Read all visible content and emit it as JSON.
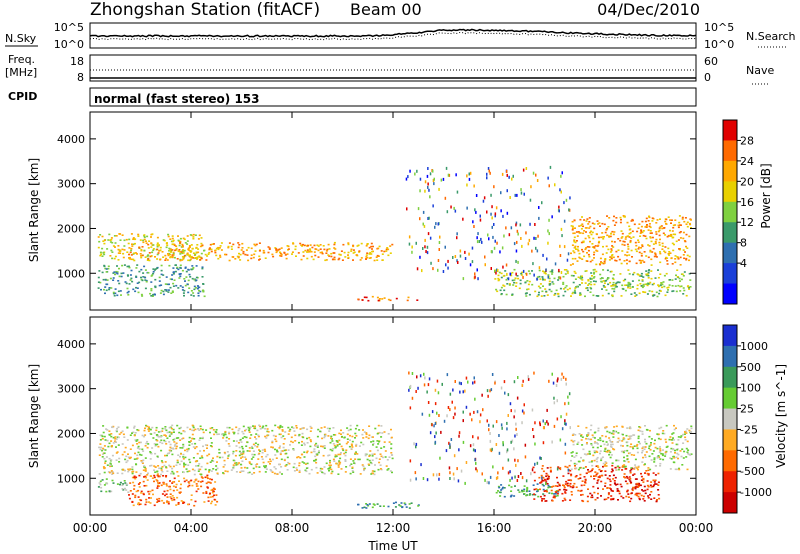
{
  "header": {
    "station": "Zhongshan Station (fitACF)",
    "beam": "Beam 00",
    "date": "04/Dec/2010"
  },
  "panels": {
    "nsky": {
      "label": "N.Sky",
      "tick_top": "10^5",
      "tick_bottom": "10^0",
      "right_label": "N.Search",
      "right_tick_top": "10^5",
      "right_tick_bottom": "10^0"
    },
    "freq": {
      "label_line1": "Freq.",
      "label_line2": "[MHz]",
      "tick_top": "18",
      "tick_bottom": "8",
      "right_tick_top": "60",
      "right_tick_bottom": "0",
      "right_label": "Nave"
    },
    "cpid": {
      "label": "CPID",
      "value": "normal (fast stereo) 153"
    }
  },
  "chart_data": [
    {
      "type": "heatmap",
      "name": "power",
      "ylabel": "Slant Range [km]",
      "xlabel": "",
      "yticks": [
        1000,
        2000,
        3000,
        4000
      ],
      "ylim": [
        180,
        4600
      ],
      "xlim": [
        0,
        24
      ],
      "colorbar": {
        "label": "Power [dB]",
        "ticks": [
          "28",
          "24",
          "20",
          "16",
          "12",
          "8",
          "4"
        ],
        "colors": [
          "#e00000",
          "#ff6a00",
          "#ffa800",
          "#e8d000",
          "#7fd040",
          "#3a9a6a",
          "#2e6fb0",
          "#1a3fd8",
          "#0000ff"
        ]
      },
      "echo_bands": [
        {
          "t0": 0.3,
          "t1": 4.5,
          "r0": 1300,
          "r1": 1900,
          "level": 3
        },
        {
          "t0": 0.3,
          "t1": 4.5,
          "r0": 500,
          "r1": 1200,
          "level": 5
        },
        {
          "t0": 1.5,
          "t1": 12.0,
          "r0": 1300,
          "r1": 1700,
          "level": 2
        },
        {
          "t0": 10.5,
          "t1": 13.0,
          "r0": 400,
          "r1": 500,
          "level": 1
        },
        {
          "t0": 16.0,
          "t1": 23.8,
          "r0": 500,
          "r1": 1100,
          "level": 4
        },
        {
          "t0": 19.0,
          "t1": 23.8,
          "r0": 1200,
          "r1": 2300,
          "level": 2
        }
      ]
    },
    {
      "type": "heatmap",
      "name": "velocity",
      "ylabel": "Slant Range [km]",
      "xlabel": "Time UT",
      "xticks": [
        "00:00",
        "04:00",
        "08:00",
        "12:00",
        "16:00",
        "20:00",
        "00:00"
      ],
      "yticks": [
        1000,
        2000,
        3000,
        4000
      ],
      "ylim": [
        180,
        4600
      ],
      "xlim": [
        0,
        24
      ],
      "colorbar": {
        "label": "Velocity [m s^-1]",
        "ticks": [
          "1000",
          "500",
          "100",
          "25",
          "-25",
          "-100",
          "-500",
          "-1000"
        ],
        "colors": [
          "#1a2fd0",
          "#2e6fb0",
          "#3a9a5a",
          "#66cc33",
          "#c8c8c0",
          "#ffaa22",
          "#ff6a00",
          "#ee2200",
          "#cc0000"
        ]
      },
      "echo_bands": [
        {
          "t0": 0.3,
          "t1": 12.0,
          "r0": 1100,
          "r1": 2200,
          "level": 4
        },
        {
          "t0": 0.3,
          "t1": 1.5,
          "r0": 700,
          "r1": 1000,
          "level": 3
        },
        {
          "t0": 1.5,
          "t1": 5.0,
          "r0": 400,
          "r1": 1100,
          "level": 6
        },
        {
          "t0": 10.5,
          "t1": 13.0,
          "r0": 350,
          "r1": 480,
          "level": 2
        },
        {
          "t0": 16.0,
          "t1": 18.5,
          "r0": 600,
          "r1": 900,
          "level": 2
        },
        {
          "t0": 17.5,
          "t1": 22.5,
          "r0": 500,
          "r1": 1300,
          "level": 7
        },
        {
          "t0": 19.0,
          "t1": 23.8,
          "r0": 1200,
          "r1": 2200,
          "level": 4
        }
      ]
    }
  ]
}
